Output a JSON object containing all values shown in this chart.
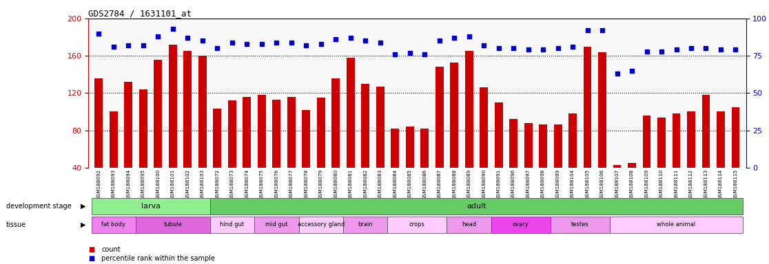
{
  "title": "GDS2784 / 1631101_at",
  "ylim_left": [
    40,
    200
  ],
  "ylim_right": [
    0,
    100
  ],
  "yticks_left": [
    40,
    80,
    120,
    160,
    200
  ],
  "yticks_right": [
    0,
    25,
    50,
    75,
    100
  ],
  "bar_color": "#cc0000",
  "dot_color": "#0000cc",
  "bg_color": "#ffffff",
  "samples": [
    "GSM188092",
    "GSM188093",
    "GSM188094",
    "GSM188095",
    "GSM188100",
    "GSM188101",
    "GSM188102",
    "GSM188103",
    "GSM188072",
    "GSM188073",
    "GSM188074",
    "GSM188075",
    "GSM188076",
    "GSM188077",
    "GSM188078",
    "GSM188079",
    "GSM188080",
    "GSM188081",
    "GSM188082",
    "GSM188083",
    "GSM188084",
    "GSM188085",
    "GSM188086",
    "GSM188087",
    "GSM188088",
    "GSM188089",
    "GSM188090",
    "GSM188091",
    "GSM188096",
    "GSM188097",
    "GSM188098",
    "GSM188099",
    "GSM188104",
    "GSM188105",
    "GSM188106",
    "GSM188107",
    "GSM188108",
    "GSM188109",
    "GSM188110",
    "GSM188111",
    "GSM188112",
    "GSM188113",
    "GSM188114",
    "GSM188115"
  ],
  "bar_heights": [
    136,
    100,
    132,
    124,
    156,
    172,
    165,
    160,
    103,
    112,
    116,
    118,
    113,
    116,
    102,
    115,
    136,
    158,
    130,
    127,
    82,
    84,
    82,
    148,
    153,
    165,
    126,
    110,
    92,
    88,
    86,
    86,
    98,
    170,
    164,
    43,
    45,
    96,
    94,
    98,
    100,
    118,
    100,
    105
  ],
  "percentile_values": [
    90,
    81,
    82,
    82,
    88,
    93,
    87,
    85,
    80,
    84,
    83,
    83,
    84,
    84,
    82,
    83,
    86,
    87,
    85,
    84,
    76,
    77,
    76,
    85,
    87,
    88,
    82,
    80,
    80,
    79,
    79,
    80,
    81,
    92,
    92,
    63,
    65,
    78,
    78,
    79,
    80,
    80,
    79,
    79
  ],
  "dev_stage_groups": [
    {
      "label": "larva",
      "start": 0,
      "end": 8,
      "color": "#90ee90"
    },
    {
      "label": "adult",
      "start": 8,
      "end": 44,
      "color": "#66cc66"
    }
  ],
  "tissue_groups": [
    {
      "label": "fat body",
      "start": 0,
      "end": 3,
      "color": "#ee82ee"
    },
    {
      "label": "tubule",
      "start": 3,
      "end": 8,
      "color": "#dd66dd"
    },
    {
      "label": "hind gut",
      "start": 8,
      "end": 11,
      "color": "#ffccff"
    },
    {
      "label": "mid gut",
      "start": 11,
      "end": 14,
      "color": "#ee99ee"
    },
    {
      "label": "accessory gland",
      "start": 14,
      "end": 17,
      "color": "#ffccff"
    },
    {
      "label": "brain",
      "start": 17,
      "end": 20,
      "color": "#ee99ee"
    },
    {
      "label": "crops",
      "start": 20,
      "end": 24,
      "color": "#ffccff"
    },
    {
      "label": "head",
      "start": 24,
      "end": 27,
      "color": "#ee99ee"
    },
    {
      "label": "ovary",
      "start": 27,
      "end": 31,
      "color": "#ee44ee"
    },
    {
      "label": "testes",
      "start": 31,
      "end": 35,
      "color": "#ee99ee"
    },
    {
      "label": "whole animal",
      "start": 35,
      "end": 44,
      "color": "#ffccff"
    }
  ],
  "legend_red_label": "count",
  "legend_blue_label": "percentile rank within the sample",
  "dev_stage_label": "development stage",
  "tissue_label": "tissue",
  "axis_color_left": "#cc0000",
  "axis_color_right": "#0000cc"
}
